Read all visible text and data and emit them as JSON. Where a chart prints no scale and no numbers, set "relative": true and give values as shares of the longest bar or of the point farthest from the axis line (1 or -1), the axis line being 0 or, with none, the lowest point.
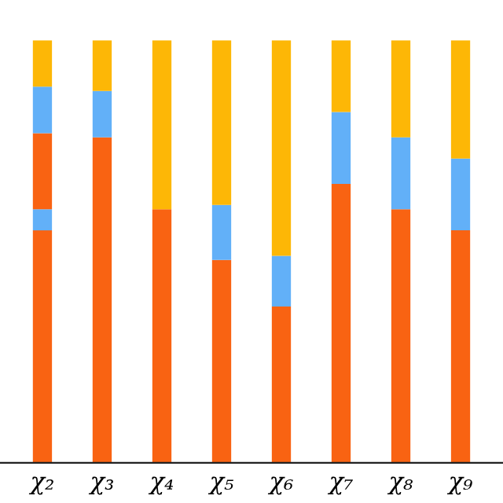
{
  "chart_data": {
    "type": "bar",
    "stacked": true,
    "relative": true,
    "categories": [
      "χ₂",
      "χ₃",
      "χ₄",
      "χ₅",
      "χ₆",
      "χ₇",
      "χ₈",
      "χ₉"
    ],
    "series": [
      {
        "color": "#f96312",
        "values": [
          0.55,
          0.77,
          0.6,
          0.48,
          0.37,
          0.66,
          0.6,
          0.55
        ]
      },
      {
        "color": "#62b0f8",
        "values": [
          0.05,
          null,
          null,
          null,
          null,
          null,
          null,
          null
        ]
      },
      {
        "color": "#f96312",
        "values": [
          0.18,
          null,
          null,
          null,
          null,
          null,
          null,
          null
        ]
      },
      {
        "color": "#62b0f8",
        "values": [
          0.11,
          0.11,
          null,
          0.13,
          0.12,
          0.17,
          0.17,
          0.17
        ]
      },
      {
        "color": "#fdb706",
        "values": [
          0.11,
          0.12,
          0.4,
          0.39,
          0.51,
          0.17,
          0.23,
          0.28
        ]
      }
    ],
    "grid": false,
    "legend": false
  }
}
